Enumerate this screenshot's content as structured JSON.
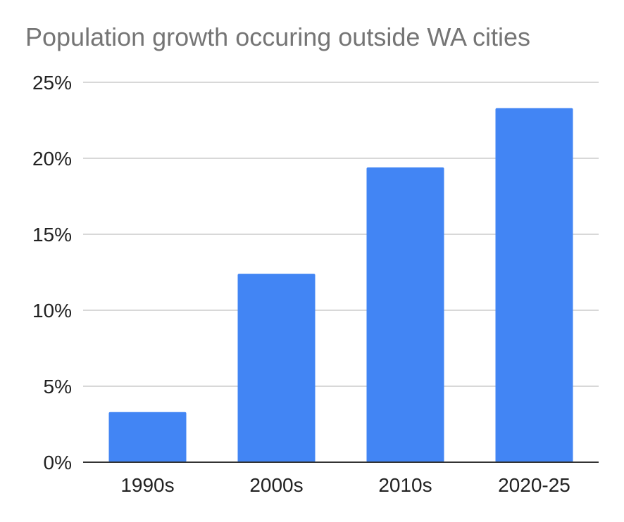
{
  "chart_data": {
    "type": "bar",
    "title": "Population growth occuring outside WA cities",
    "categories": [
      "1990s",
      "2000s",
      "2010s",
      "2020-25"
    ],
    "series": [
      {
        "values": [
          3.3,
          12.4,
          19.4,
          23.3
        ]
      }
    ],
    "value_unit": "%",
    "ylim": [
      0,
      25
    ],
    "yticks": [
      0,
      5,
      10,
      15,
      20,
      25
    ],
    "ytick_labels": [
      "0%",
      "5%",
      "10%",
      "15%",
      "20%",
      "25%"
    ],
    "xlabel": "",
    "ylabel": "",
    "grid": true,
    "legend": "none",
    "colors": {
      "bar": "#4285f4",
      "grid": "#cccccc",
      "axis": "#333333",
      "title": "#757575"
    }
  }
}
